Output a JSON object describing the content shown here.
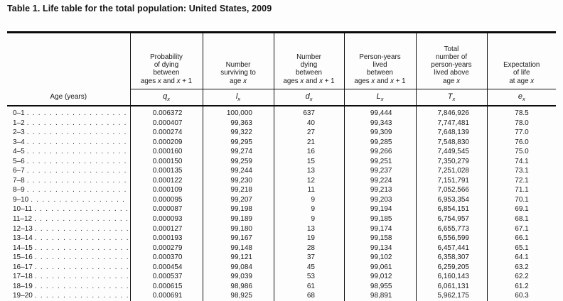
{
  "title": "Table 1. Life table for the total population: United States, 2009",
  "table": {
    "age_header": "Age (years)",
    "columns": [
      {
        "key": "q",
        "desc_lines": [
          "Probability",
          "of dying",
          "between",
          "ages x and x + 1"
        ],
        "symbol_base": "q",
        "symbol_sub": "x"
      },
      {
        "key": "l",
        "desc_lines": [
          "Number",
          "surviving to",
          "age x"
        ],
        "symbol_base": "l",
        "symbol_sub": "x"
      },
      {
        "key": "d",
        "desc_lines": [
          "Number",
          "dying",
          "between",
          "ages x and x + 1"
        ],
        "symbol_base": "d",
        "symbol_sub": "x"
      },
      {
        "key": "L",
        "desc_lines": [
          "Person-years",
          "lived",
          "between",
          "ages x and x + 1"
        ],
        "symbol_base": "L",
        "symbol_sub": "x"
      },
      {
        "key": "T",
        "desc_lines": [
          "Total",
          "number of",
          "person-years",
          "lived above",
          "age x"
        ],
        "symbol_base": "T",
        "symbol_sub": "x"
      },
      {
        "key": "e",
        "desc_lines": [
          "Expectation",
          "of life",
          "at age x"
        ],
        "symbol_base": "e",
        "symbol_sub": "x"
      }
    ],
    "rows": [
      {
        "age": "0–1",
        "q": "0.006372",
        "l": "100,000",
        "d": "637",
        "L": "99,444",
        "T": "7,846,926",
        "e": "78.5"
      },
      {
        "age": "1–2",
        "q": "0.000407",
        "l": "99,363",
        "d": "40",
        "L": "99,343",
        "T": "7,747,481",
        "e": "78.0"
      },
      {
        "age": "2–3",
        "q": "0.000274",
        "l": "99,322",
        "d": "27",
        "L": "99,309",
        "T": "7,648,139",
        "e": "77.0"
      },
      {
        "age": "3–4",
        "q": "0.000209",
        "l": "99,295",
        "d": "21",
        "L": "99,285",
        "T": "7,548,830",
        "e": "76.0"
      },
      {
        "age": "4–5",
        "q": "0.000160",
        "l": "99,274",
        "d": "16",
        "L": "99,266",
        "T": "7,449,545",
        "e": "75.0"
      },
      {
        "age": "5–6",
        "q": "0.000150",
        "l": "99,259",
        "d": "15",
        "L": "99,251",
        "T": "7,350,279",
        "e": "74.1"
      },
      {
        "age": "6–7",
        "q": "0.000135",
        "l": "99,244",
        "d": "13",
        "L": "99,237",
        "T": "7,251,028",
        "e": "73.1"
      },
      {
        "age": "7–8",
        "q": "0.000122",
        "l": "99,230",
        "d": "12",
        "L": "99,224",
        "T": "7,151,791",
        "e": "72.1"
      },
      {
        "age": "8–9",
        "q": "0.000109",
        "l": "99,218",
        "d": "11",
        "L": "99,213",
        "T": "7,052,566",
        "e": "71.1"
      },
      {
        "age": "9–10",
        "q": "0.000095",
        "l": "99,207",
        "d": "9",
        "L": "99,203",
        "T": "6,953,354",
        "e": "70.1"
      },
      {
        "age": "10–11",
        "q": "0.000087",
        "l": "99,198",
        "d": "9",
        "L": "99,194",
        "T": "6,854,151",
        "e": "69.1"
      },
      {
        "age": "11–12",
        "q": "0.000093",
        "l": "99,189",
        "d": "9",
        "L": "99,185",
        "T": "6,754,957",
        "e": "68.1"
      },
      {
        "age": "12–13",
        "q": "0.000127",
        "l": "99,180",
        "d": "13",
        "L": "99,174",
        "T": "6,655,773",
        "e": "67.1"
      },
      {
        "age": "13–14",
        "q": "0.000193",
        "l": "99,167",
        "d": "19",
        "L": "99,158",
        "T": "6,556,599",
        "e": "66.1"
      },
      {
        "age": "14–15",
        "q": "0.000279",
        "l": "99,148",
        "d": "28",
        "L": "99,134",
        "T": "6,457,441",
        "e": "65.1"
      },
      {
        "age": "15–16",
        "q": "0.000370",
        "l": "99,121",
        "d": "37",
        "L": "99,102",
        "T": "6,358,307",
        "e": "64.1"
      },
      {
        "age": "16–17",
        "q": "0.000454",
        "l": "99,084",
        "d": "45",
        "L": "99,061",
        "T": "6,259,205",
        "e": "63.2"
      },
      {
        "age": "17–18",
        "q": "0.000537",
        "l": "99,039",
        "d": "53",
        "L": "99,012",
        "T": "6,160,143",
        "e": "62.2"
      },
      {
        "age": "18–19",
        "q": "0.000615",
        "l": "98,986",
        "d": "61",
        "L": "98,955",
        "T": "6,061,131",
        "e": "61.2"
      },
      {
        "age": "19–20",
        "q": "0.000691",
        "l": "98,925",
        "d": "68",
        "L": "98,891",
        "T": "5,962,175",
        "e": "60.3"
      }
    ]
  }
}
